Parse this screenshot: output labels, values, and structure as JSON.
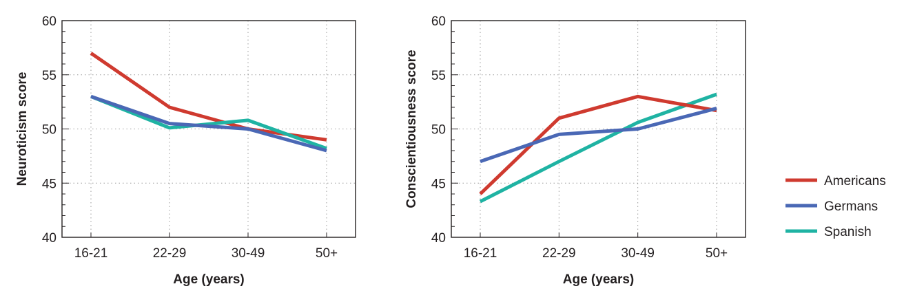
{
  "colors": {
    "Americans": "#cf3a2f",
    "Germans": "#4a68b5",
    "Spanish": "#1fb3a3",
    "axis": "#231f20",
    "grid": "#9a9a9a"
  },
  "legend": {
    "placement": "right",
    "items": [
      "Americans",
      "Germans",
      "Spanish"
    ]
  },
  "chart_data": [
    {
      "type": "line",
      "categories": [
        "16-21",
        "22-29",
        "30-49",
        "50+"
      ],
      "xlabel": "Age (years)",
      "ylabel": "Neuroticism score",
      "ylim": [
        40,
        60
      ],
      "yticks": [
        40,
        45,
        50,
        55,
        60
      ],
      "grid": true,
      "series": [
        {
          "name": "Americans",
          "values": [
            57,
            52,
            50,
            49
          ]
        },
        {
          "name": "Spanish",
          "values": [
            53,
            50.1,
            50.8,
            48.2
          ]
        },
        {
          "name": "Germans",
          "values": [
            53,
            50.5,
            50,
            48
          ]
        }
      ]
    },
    {
      "type": "line",
      "categories": [
        "16-21",
        "22-29",
        "30-49",
        "50+"
      ],
      "xlabel": "Age (years)",
      "ylabel": "Conscientiousness score",
      "ylim": [
        40,
        60
      ],
      "yticks": [
        40,
        45,
        50,
        55,
        60
      ],
      "grid": true,
      "series": [
        {
          "name": "Spanish",
          "values": [
            43.3,
            47,
            50.6,
            53.2
          ]
        },
        {
          "name": "Americans",
          "values": [
            44,
            51,
            53,
            51.7
          ]
        },
        {
          "name": "Germans",
          "values": [
            47,
            49.5,
            50,
            51.9
          ]
        }
      ]
    }
  ]
}
